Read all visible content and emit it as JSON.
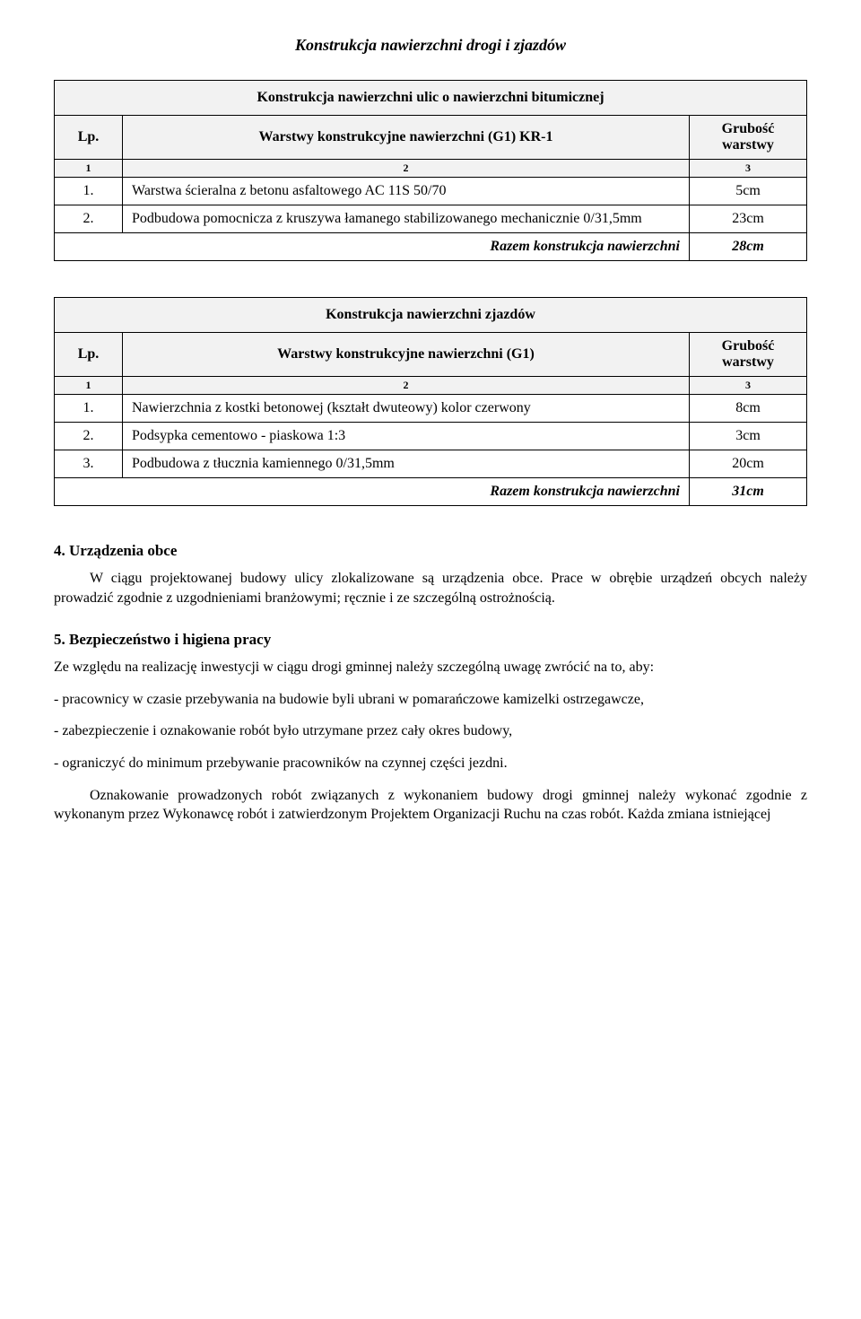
{
  "doc_title": "Konstrukcja nawierzchni drogi i zjazdów",
  "table1": {
    "title": "Konstrukcja nawierzchni ulic o nawierzchni bitumicznej",
    "col_lp": "Lp.",
    "col_desc": "Warstwy konstrukcyjne nawierzchni (G1) KR-1",
    "col_val": "Grubość warstwy",
    "numhdr": [
      "1",
      "2",
      "3"
    ],
    "rows": [
      {
        "lp": "1.",
        "desc": "Warstwa ścieralna z betonu asfaltowego AC 11S 50/70",
        "val": "5cm"
      },
      {
        "lp": "2.",
        "desc": "Podbudowa pomocnicza z kruszywa łamanego stabilizowanego mechanicznie 0/31,5mm",
        "val": "23cm"
      }
    ],
    "total_label": "Razem konstrukcja nawierzchni",
    "total_val": "28cm"
  },
  "table2": {
    "title": "Konstrukcja nawierzchni zjazdów",
    "col_lp": "Lp.",
    "col_desc": "Warstwy konstrukcyjne nawierzchni (G1)",
    "col_val": "Grubość warstwy",
    "numhdr": [
      "1",
      "2",
      "3"
    ],
    "rows": [
      {
        "lp": "1.",
        "desc": "Nawierzchnia z kostki betonowej (kształt dwuteowy) kolor czerwony",
        "val": "8cm"
      },
      {
        "lp": "2.",
        "desc": "Podsypka cementowo - piaskowa 1:3",
        "val": "3cm"
      },
      {
        "lp": "3.",
        "desc": "Podbudowa z tłucznia kamiennego 0/31,5mm",
        "val": "20cm"
      }
    ],
    "total_label": "Razem konstrukcja nawierzchni",
    "total_val": "31cm"
  },
  "sec4": {
    "heading": "4.  Urządzenia obce",
    "p1": "W ciągu projektowanej budowy ulicy zlokalizowane są urządzenia obce. Prace w obrębie urządzeń obcych należy prowadzić zgodnie z uzgodnieniami branżowymi; ręcznie i ze szczególną ostrożnością."
  },
  "sec5": {
    "heading": "5.  Bezpieczeństwo i higiena pracy",
    "p1": "Ze względu na realizację inwestycji w ciągu drogi gminnej należy szczególną uwagę zwrócić na to, aby:",
    "b1": "- pracownicy w czasie przebywania na budowie byli ubrani w pomarańczowe kamizelki ostrzegawcze,",
    "b2": "- zabezpieczenie i oznakowanie robót było utrzymane przez cały okres budowy,",
    "b3": "- ograniczyć do minimum przebywanie pracowników na czynnej części jezdni.",
    "p2": "Oznakowanie prowadzonych robót związanych z wykonaniem budowy drogi gminnej należy wykonać zgodnie z wykonanym przez Wykonawcę robót i zatwierdzonym Projektem Organizacji Ruchu na czas robót. Każda zmiana istniejącej"
  }
}
